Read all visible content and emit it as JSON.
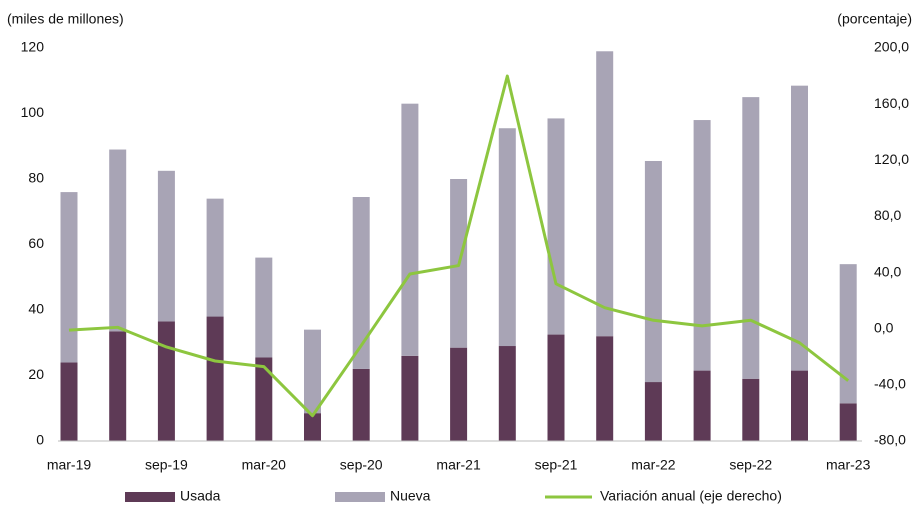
{
  "chart_data": {
    "type": "bar-line",
    "y_axis_label": "(miles de millones)",
    "y2_axis_label": "(porcentaje)",
    "categories": [
      "mar-19",
      null,
      "sep-19",
      null,
      "mar-20",
      null,
      "sep-20",
      null,
      "mar-21",
      null,
      "sep-21",
      null,
      "mar-22",
      null,
      "sep-22",
      null,
      "mar-23"
    ],
    "series": [
      {
        "name": "Usada",
        "type": "bar",
        "color": "#5e3a56",
        "values": [
          24,
          33.5,
          36.5,
          38,
          25.5,
          8.5,
          22,
          26,
          28.5,
          29,
          32.5,
          32,
          18,
          21.5,
          19,
          21.5,
          11.5
        ]
      },
      {
        "name": "Nueva",
        "type": "bar",
        "color": "#a8a4b5",
        "values": [
          52,
          55.5,
          46,
          36,
          30.5,
          25.5,
          52.5,
          77,
          51.5,
          66.5,
          66,
          87,
          67.5,
          76.5,
          86,
          87,
          42.5
        ]
      },
      {
        "name": "Variación anual  (eje derecho)",
        "type": "line",
        "axis": "y2",
        "color": "#8dc63f",
        "values": [
          -1,
          1,
          -13,
          -23,
          -27,
          -62,
          -12,
          39,
          45,
          180,
          32,
          15,
          6,
          2,
          6,
          -10,
          -37
        ]
      }
    ],
    "ylim": [
      0,
      120
    ],
    "yticks": [
      0,
      20,
      40,
      60,
      80,
      100,
      120
    ],
    "y2lim": [
      -80,
      200
    ],
    "y2ticks": [
      {
        "value": -80,
        "label": "-80,0"
      },
      {
        "value": -40,
        "label": "-40,0"
      },
      {
        "value": 0,
        "label": "0,0"
      },
      {
        "value": 40,
        "label": "40,0"
      },
      {
        "value": 80,
        "label": "80,0"
      },
      {
        "value": 120,
        "label": "120,0"
      },
      {
        "value": 160,
        "label": "160,0"
      },
      {
        "value": 200,
        "label": "200,0"
      }
    ]
  }
}
